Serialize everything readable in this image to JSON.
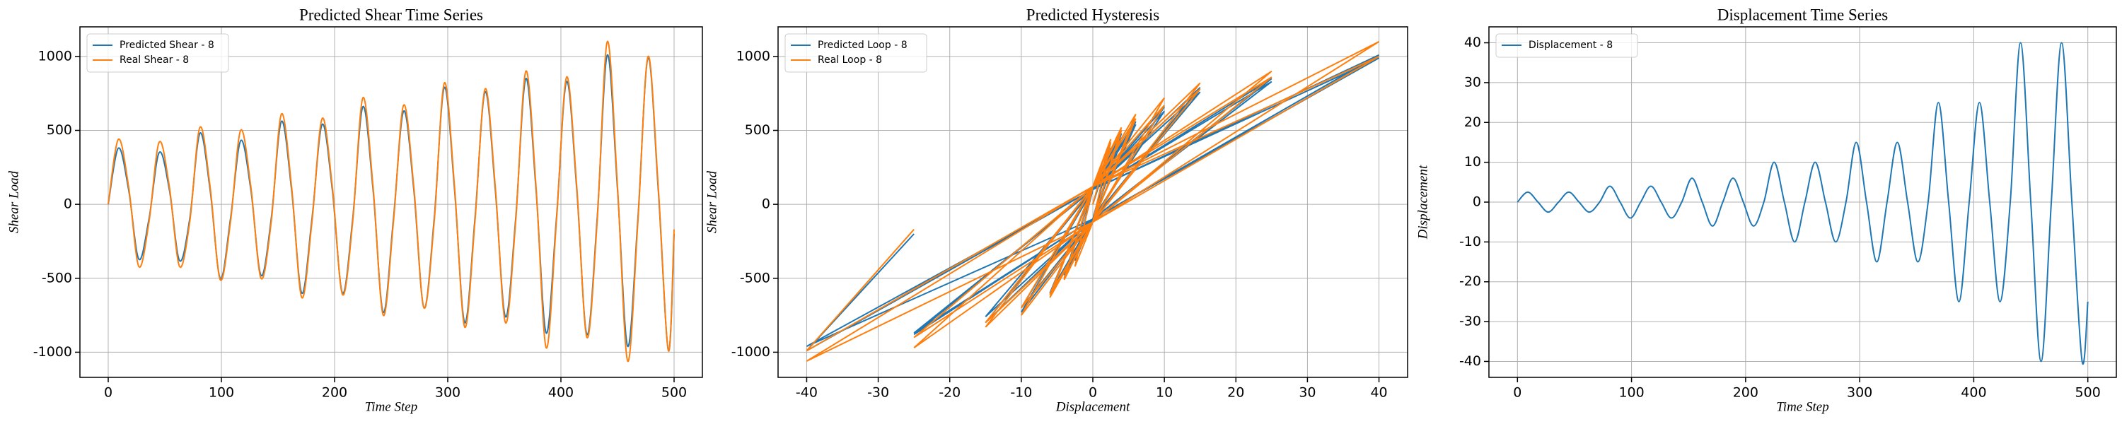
{
  "chart_data": [
    {
      "type": "line",
      "title": "Predicted Shear Time Series",
      "xlabel": "Time Step",
      "ylabel": "Shear Load",
      "xlim": [
        -25,
        525
      ],
      "ylim": [
        -1170,
        1200
      ],
      "xticks": [
        0,
        100,
        200,
        300,
        400,
        500
      ],
      "yticks": [
        -1000,
        -500,
        0,
        500,
        1000
      ],
      "grid": true,
      "legend": "upper left",
      "x": [
        0,
        9,
        18,
        27,
        36,
        45,
        54,
        63,
        72,
        81,
        90,
        99,
        108,
        117,
        126,
        135,
        144,
        153,
        162,
        171,
        180,
        189,
        198,
        207,
        216,
        225,
        234,
        243,
        252,
        261,
        270,
        279,
        288,
        297,
        306,
        315,
        324,
        333,
        342,
        351,
        360,
        369,
        378,
        387,
        396,
        405,
        414,
        423,
        432,
        441,
        450,
        459,
        468,
        477,
        486,
        495,
        500
      ],
      "series": [
        {
          "name": "Predicted Shear - 8",
          "color": "#1f77b4",
          "values": [
            0,
            380,
            100,
            -370,
            -100,
            350,
            100,
            -380,
            -100,
            480,
            100,
            -500,
            -100,
            430,
            100,
            -480,
            -100,
            560,
            100,
            -600,
            -100,
            540,
            100,
            -600,
            -100,
            660,
            100,
            -730,
            -100,
            630,
            100,
            -700,
            -100,
            790,
            100,
            -800,
            -100,
            760,
            100,
            -760,
            -100,
            850,
            100,
            -870,
            -100,
            830,
            100,
            -880,
            -100,
            1010,
            100,
            -960,
            -100,
            990,
            100,
            -990,
            -200
          ]
        },
        {
          "name": "Real Shear - 8",
          "color": "#ff7f0e",
          "values": [
            0,
            440,
            120,
            -420,
            -120,
            420,
            120,
            -420,
            -120,
            520,
            120,
            -510,
            -120,
            500,
            120,
            -500,
            -120,
            610,
            120,
            -630,
            -120,
            580,
            120,
            -610,
            -120,
            720,
            120,
            -750,
            -120,
            670,
            120,
            -700,
            -120,
            820,
            120,
            -830,
            -120,
            780,
            120,
            -800,
            -120,
            900,
            120,
            -970,
            -120,
            860,
            120,
            -900,
            -120,
            1100,
            120,
            -1060,
            -120,
            1000,
            120,
            -990,
            -170
          ]
        }
      ]
    },
    {
      "type": "line",
      "title": "Predicted Hysteresis",
      "xlabel": "Displacement",
      "ylabel": "Shear Load",
      "xlim": [
        -44,
        44
      ],
      "ylim": [
        -1170,
        1200
      ],
      "xticks": [
        -40,
        -30,
        -20,
        -10,
        0,
        10,
        20,
        30,
        40
      ],
      "yticks": [
        -1000,
        -500,
        0,
        500,
        1000
      ],
      "grid": true,
      "legend": "upper left",
      "series": [
        {
          "name": "Predicted Loop - 8",
          "color": "#1f77b4",
          "x": [
            0,
            2.5,
            0,
            -2.5,
            0,
            2.5,
            0,
            -2.5,
            0,
            4,
            0,
            -4,
            0,
            4,
            0,
            -4,
            0,
            6,
            0,
            -6,
            0,
            6,
            0,
            -6,
            0,
            10,
            0,
            -10,
            0,
            10,
            0,
            -10,
            0,
            15,
            0,
            -15,
            0,
            15,
            0,
            -15,
            0,
            25,
            0,
            -25,
            0,
            25,
            0,
            -25,
            0,
            40,
            0,
            -40,
            0,
            40,
            0,
            -40,
            -25
          ],
          "values": [
            0,
            380,
            100,
            -370,
            -100,
            350,
            100,
            -380,
            -100,
            480,
            100,
            -500,
            -100,
            430,
            100,
            -480,
            -100,
            560,
            100,
            -600,
            -100,
            540,
            100,
            -600,
            -100,
            660,
            100,
            -730,
            -100,
            630,
            100,
            -700,
            -100,
            790,
            100,
            -800,
            -100,
            760,
            100,
            -760,
            -100,
            850,
            100,
            -870,
            -100,
            830,
            100,
            -880,
            -100,
            1010,
            100,
            -960,
            -100,
            990,
            100,
            -990,
            -200
          ]
        },
        {
          "name": "Real Loop - 8",
          "color": "#ff7f0e",
          "x": [
            0,
            2.5,
            0,
            -2.5,
            0,
            2.5,
            0,
            -2.5,
            0,
            4,
            0,
            -4,
            0,
            4,
            0,
            -4,
            0,
            6,
            0,
            -6,
            0,
            6,
            0,
            -6,
            0,
            10,
            0,
            -10,
            0,
            10,
            0,
            -10,
            0,
            15,
            0,
            -15,
            0,
            15,
            0,
            -15,
            0,
            25,
            0,
            -25,
            0,
            25,
            0,
            -25,
            0,
            40,
            0,
            -40,
            0,
            40,
            0,
            -40,
            -25
          ],
          "values": [
            0,
            440,
            120,
            -420,
            -120,
            420,
            120,
            -420,
            -120,
            520,
            120,
            -510,
            -120,
            500,
            120,
            -500,
            -120,
            610,
            120,
            -630,
            -120,
            580,
            120,
            -610,
            -120,
            720,
            120,
            -750,
            -120,
            670,
            120,
            -700,
            -120,
            820,
            120,
            -830,
            -120,
            780,
            120,
            -800,
            -120,
            900,
            120,
            -970,
            -120,
            860,
            120,
            -900,
            -120,
            1100,
            120,
            -1060,
            -120,
            1000,
            120,
            -990,
            -170
          ]
        }
      ]
    },
    {
      "type": "line",
      "title": "Displacement Time Series",
      "xlabel": "Time Step",
      "ylabel": "Displacement",
      "xlim": [
        -25,
        525
      ],
      "ylim": [
        -44,
        44
      ],
      "xticks": [
        0,
        100,
        200,
        300,
        400,
        500
      ],
      "yticks": [
        -40,
        -30,
        -20,
        -10,
        0,
        10,
        20,
        30,
        40
      ],
      "grid": true,
      "legend": "upper left",
      "x": [
        0,
        9,
        18,
        27,
        36,
        45,
        54,
        63,
        72,
        81,
        90,
        99,
        108,
        117,
        126,
        135,
        144,
        153,
        162,
        171,
        180,
        189,
        198,
        207,
        216,
        225,
        234,
        243,
        252,
        261,
        270,
        279,
        288,
        297,
        306,
        315,
        324,
        333,
        342,
        351,
        360,
        369,
        378,
        387,
        396,
        405,
        414,
        423,
        432,
        441,
        450,
        459,
        468,
        477,
        486,
        495,
        500
      ],
      "series": [
        {
          "name": "Displacement - 8",
          "color": "#1f77b4",
          "values": [
            0,
            2.5,
            0,
            -2.5,
            0,
            2.5,
            0,
            -2.5,
            0,
            4,
            0,
            -4,
            0,
            4,
            0,
            -4,
            0,
            6,
            0,
            -6,
            0,
            6,
            0,
            -6,
            0,
            10,
            0,
            -10,
            0,
            10,
            0,
            -10,
            0,
            15,
            0,
            -15,
            0,
            15,
            0,
            -15,
            0,
            25,
            0,
            -25,
            0,
            25,
            0,
            -25,
            0,
            40,
            0,
            -40,
            0,
            40,
            0,
            -40,
            -25
          ]
        }
      ]
    }
  ]
}
